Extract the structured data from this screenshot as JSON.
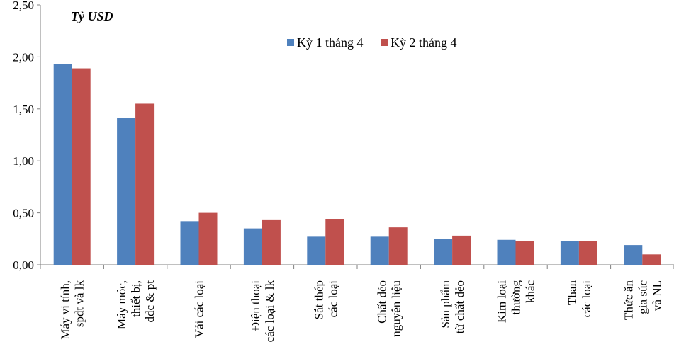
{
  "chart_data": {
    "type": "bar",
    "unit_label": "Tỷ USD",
    "ylim": [
      0,
      2.5
    ],
    "y_ticks": [
      "0,00",
      "0,50",
      "1,00",
      "1,50",
      "2,00",
      "2,50"
    ],
    "y_tick_values": [
      0,
      0.5,
      1.0,
      1.5,
      2.0,
      2.5
    ],
    "grid": false,
    "legend_position": "top-center",
    "categories": [
      [
        "Máy vi tính,",
        "spdt và lk"
      ],
      [
        "Máy móc,",
        "thiết bị,",
        "ddc & pt"
      ],
      [
        "Vải các loại"
      ],
      [
        "Điện thoại",
        "các loại & lk"
      ],
      [
        "Sắt thép",
        "các loại"
      ],
      [
        "Chất dẻo",
        "nguyên liệu"
      ],
      [
        "Sản phẩm",
        "từ chất dẻo"
      ],
      [
        "Kim loại",
        "thường",
        "khác"
      ],
      [
        "Than",
        "các loại"
      ],
      [
        "Thức ăn",
        "gia súc",
        "và NL"
      ]
    ],
    "series": [
      {
        "name": "Kỳ 1 tháng 4",
        "color": "#4F81BD",
        "values": [
          1.93,
          1.41,
          0.42,
          0.35,
          0.27,
          0.27,
          0.25,
          0.24,
          0.23,
          0.19
        ]
      },
      {
        "name": "Kỳ 2 tháng 4",
        "color": "#C0504D",
        "values": [
          1.89,
          1.55,
          0.5,
          0.43,
          0.44,
          0.36,
          0.28,
          0.23,
          0.23,
          0.1
        ]
      }
    ]
  }
}
